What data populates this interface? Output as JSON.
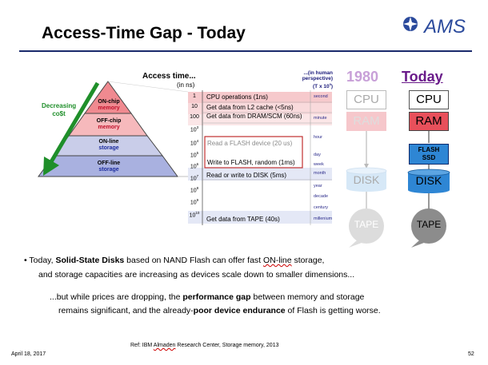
{
  "title": "Access-Time Gap - Today",
  "logo": {
    "text": "AMS"
  },
  "diagram": {
    "pyramid_levels": [
      {
        "line1": "ON-chip",
        "line2": "memory"
      },
      {
        "line1": "OFF-chip",
        "line2": "memory"
      },
      {
        "line1": "ON-line",
        "line2": "storage"
      },
      {
        "line1": "OFF-line",
        "line2": "storage"
      }
    ],
    "cost_label_line1": "Decreasing",
    "cost_label_line2": "co$t",
    "access_time_header": "Access time...",
    "access_time_unit": "(in ns)",
    "human_header_line1": "...(in human",
    "human_header_line2": "perspective)",
    "human_header_scale": "(T x 10",
    "human_header_exp": "9",
    "human_header_close": ")",
    "powers": [
      {
        "base": "1",
        "exp": ""
      },
      {
        "base": "10",
        "exp": ""
      },
      {
        "base": "100",
        "exp": ""
      },
      {
        "base": "10",
        "exp": "3"
      },
      {
        "base": "10",
        "exp": "4"
      },
      {
        "base": "10",
        "exp": "5"
      },
      {
        "base": "10",
        "exp": "6"
      },
      {
        "base": "10",
        "exp": "7"
      },
      {
        "base": "10",
        "exp": "8"
      },
      {
        "base": "10",
        "exp": "9"
      },
      {
        "base": "10",
        "exp": "10"
      }
    ],
    "human_times": [
      "second",
      "minute",
      "hour",
      "day",
      "week",
      "month",
      "year",
      "decade",
      "century",
      "millenium"
    ],
    "operations": {
      "cpu": "CPU operations  (1ns)",
      "l2": "Get data from L2 cache (<5ns)",
      "dram": "Get data from DRAM/SCM (60ns)",
      "flash_read": "Read a FLASH device (20 us)",
      "flash_write": "Write to FLASH, random (1ms)",
      "disk": "Read or write to DISK  (5ms)",
      "tape": "Get data from TAPE  (40s)"
    },
    "year_1980": "1980",
    "year_today": "Today",
    "stack_1980": {
      "cpu": "CPU",
      "ram": "RAM",
      "disk": "DISK",
      "tape": "TAPE"
    },
    "stack_today": {
      "cpu": "CPU",
      "ram": "RAM",
      "flash_line1": "FLASH",
      "flash_line2": "SSD",
      "disk": "DISK",
      "tape": "TAPE"
    },
    "colors": {
      "pink_1980": "#c8a0d8",
      "purple_today": "#6a1b8a",
      "ram_red": "#e8505b",
      "disk_blue": "#2e86d4",
      "navy": "#1a2a6c",
      "arrow_green": "#1f8f2a"
    }
  },
  "bullets": {
    "b1_prefix": "• Today, ",
    "b1_bold": "Solid-State Disks",
    "b1_mid": " based on NAND Flash can offer fast ",
    "b1_underlined": "ON-line",
    "b1_suffix": " storage,",
    "b1_line2": "and storage capacities are increasing as devices scale down to smaller dimensions...",
    "b2_prefix": "...but while prices are dropping, the ",
    "b2_bold": "performance gap",
    "b2_suffix": " between memory and storage",
    "b2_line2_prefix": "remains significant, and the already-",
    "b2_line2_bold": "poor device endurance",
    "b2_line2_suffix": " of Flash is getting worse."
  },
  "reference": {
    "prefix": "Ref: IBM ",
    "underlined": "Almaden",
    "suffix": " Research Center, Storage memory, 2013"
  },
  "footer": {
    "date": "April 18, 2017",
    "page": "52"
  }
}
